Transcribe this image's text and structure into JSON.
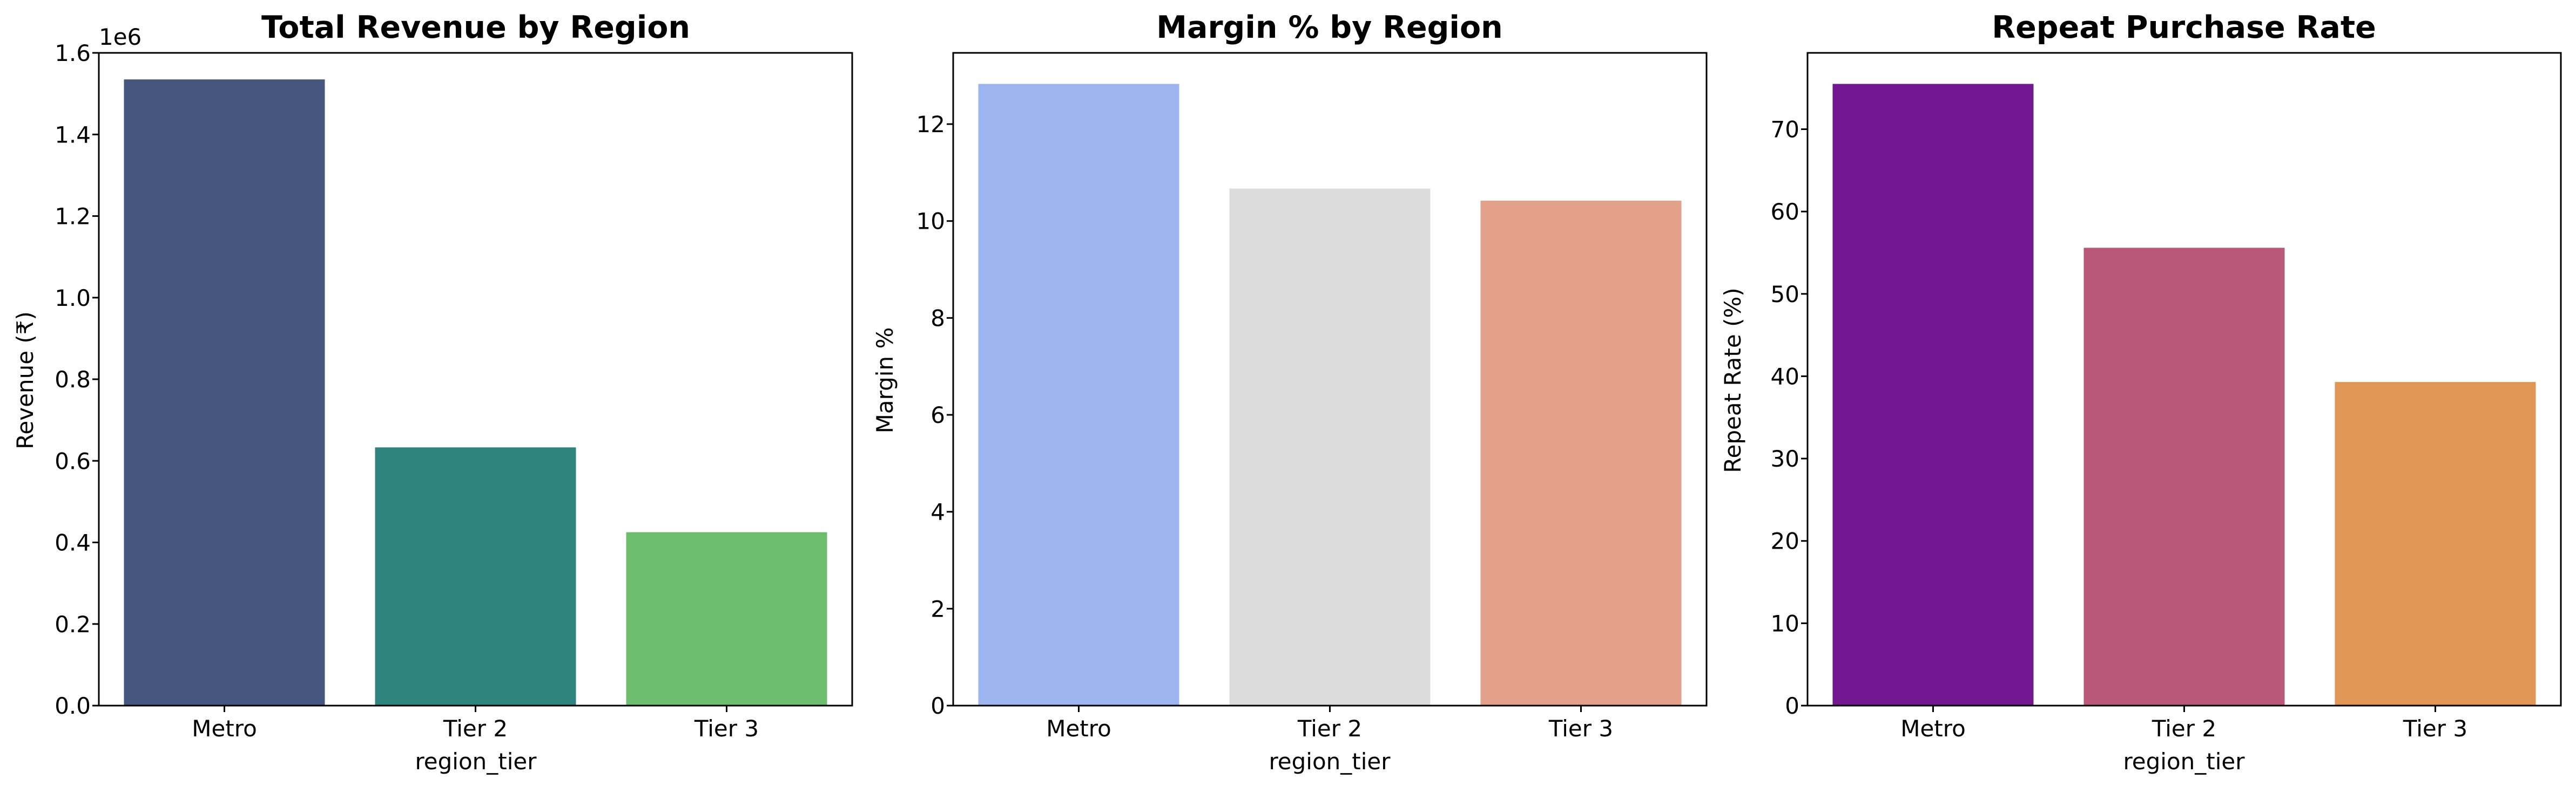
{
  "chart_data": [
    {
      "type": "bar",
      "title": "Total Revenue by Region",
      "xlabel": "region_tier",
      "ylabel": "Revenue (₹)",
      "offset_label": "1e6",
      "categories": [
        "Metro",
        "Tier 2",
        "Tier 3"
      ],
      "values": [
        1.535,
        0.633,
        0.425
      ],
      "colors": [
        "#46577f",
        "#2e847d",
        "#6cbd6e"
      ],
      "ylim": [
        0,
        1.6
      ],
      "yticks": [
        0.0,
        0.2,
        0.4,
        0.6,
        0.8,
        1.0,
        1.2,
        1.4,
        1.6
      ],
      "ytick_labels": [
        "0.0",
        "0.2",
        "0.4",
        "0.6",
        "0.8",
        "1.0",
        "1.2",
        "1.4",
        "1.6"
      ],
      "grid": false,
      "legend": "none"
    },
    {
      "type": "bar",
      "title": "Margin % by Region",
      "xlabel": "region_tier",
      "ylabel": "Margin %",
      "categories": [
        "Metro",
        "Tier 2",
        "Tier 3"
      ],
      "values": [
        12.83,
        10.67,
        10.42
      ],
      "colors": [
        "#9db5ef",
        "#dcdcdc",
        "#e3a08a"
      ],
      "ylim": [
        0,
        13.47
      ],
      "yticks": [
        0,
        2,
        4,
        6,
        8,
        10,
        12
      ],
      "ytick_labels": [
        "0",
        "2",
        "4",
        "6",
        "8",
        "10",
        "12"
      ],
      "grid": false,
      "legend": "none"
    },
    {
      "type": "bar",
      "title": "Repeat Purchase Rate",
      "xlabel": "region_tier",
      "ylabel": "Repeat Rate (%)",
      "categories": [
        "Metro",
        "Tier 2",
        "Tier 3"
      ],
      "values": [
        75.5,
        55.6,
        39.3
      ],
      "colors": [
        "#721991",
        "#ba5879",
        "#e09756"
      ],
      "ylim": [
        0,
        79.27
      ],
      "yticks": [
        0,
        10,
        20,
        30,
        40,
        50,
        60,
        70
      ],
      "ytick_labels": [
        "0",
        "10",
        "20",
        "30",
        "40",
        "50",
        "60",
        "70"
      ],
      "grid": false,
      "legend": "none"
    }
  ]
}
